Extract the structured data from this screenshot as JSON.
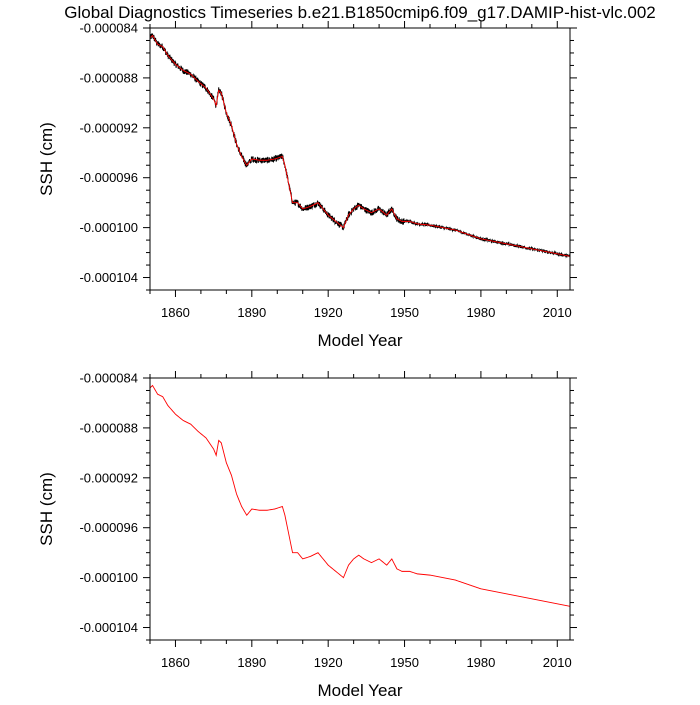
{
  "title": "Global Diagnostics Timeseries b.e21.B1850cmip6.f09_g17.DAMIP-hist-vlc.002",
  "colors": {
    "monthly": "#000000",
    "annual": "#ff0000",
    "axes": "#000000"
  },
  "chart_data": [
    {
      "type": "line",
      "title": "Global Diagnostics Timeseries b.e21.B1850cmip6.f09_g17.DAMIP-hist-vlc.002",
      "xlabel": "Model Year",
      "ylabel": "SSH (cm)",
      "xlim": [
        1850,
        2015
      ],
      "ylim": [
        -0.000105,
        -8.4e-05
      ],
      "xticks": [
        1860,
        1890,
        1920,
        1950,
        1980,
        2010
      ],
      "xtick_labels": [
        "1860",
        "1890",
        "1920",
        "1950",
        "1980",
        "2010"
      ],
      "yticks": [
        -8.4e-05,
        -8.8e-05,
        -9.2e-05,
        -9.6e-05,
        -0.0001,
        -0.000104
      ],
      "ytick_labels": [
        "-0.000084",
        "-0.000088",
        "-0.000092",
        "-0.000096",
        "-0.000100",
        "-0.000104"
      ],
      "grid": false,
      "series": [
        {
          "color": "#000000",
          "style": "noisy-monthly",
          "x": [
            1850,
            1851,
            1853,
            1855,
            1857,
            1860,
            1863,
            1866,
            1869,
            1872,
            1875,
            1876,
            1877,
            1878,
            1880,
            1882,
            1884,
            1886,
            1888,
            1890,
            1893,
            1896,
            1899,
            1902,
            1903,
            1904,
            1905,
            1906,
            1908,
            1910,
            1913,
            1916,
            1920,
            1923,
            1926,
            1928,
            1930,
            1932,
            1934,
            1937,
            1940,
            1943,
            1945,
            1947,
            1949,
            1952,
            1955,
            1960,
            1970,
            1980,
            1985,
            1990,
            1995,
            2000,
            2005,
            2010,
            2015
          ],
          "y": [
            -8.48e-05,
            -8.46e-05,
            -8.53e-05,
            -8.55e-05,
            -8.62e-05,
            -8.69e-05,
            -8.74e-05,
            -8.77e-05,
            -8.83e-05,
            -8.88e-05,
            -8.97e-05,
            -9.02e-05,
            -8.9e-05,
            -8.92e-05,
            -9.08e-05,
            -9.18e-05,
            -9.33e-05,
            -9.43e-05,
            -9.5e-05,
            -9.45e-05,
            -9.46e-05,
            -9.46e-05,
            -9.45e-05,
            -9.43e-05,
            -9.5e-05,
            -9.6e-05,
            -9.7e-05,
            -9.8e-05,
            -9.8e-05,
            -9.85e-05,
            -9.83e-05,
            -9.8e-05,
            -9.9e-05,
            -9.95e-05,
            -0.0001,
            -9.9e-05,
            -9.85e-05,
            -9.82e-05,
            -9.85e-05,
            -9.88e-05,
            -9.85e-05,
            -9.9e-05,
            -9.85e-05,
            -9.93e-05,
            -9.95e-05,
            -9.95e-05,
            -9.97e-05,
            -9.98e-05,
            -0.0001002,
            -0.0001009,
            -0.0001011,
            -0.0001013,
            -0.0001015,
            -0.0001017,
            -0.0001019,
            -0.0001021,
            -0.0001023
          ]
        },
        {
          "color": "#ff0000",
          "style": "annual",
          "x": [
            1850,
            1851,
            1853,
            1855,
            1857,
            1860,
            1863,
            1866,
            1869,
            1872,
            1875,
            1876,
            1877,
            1878,
            1880,
            1882,
            1884,
            1886,
            1888,
            1890,
            1893,
            1896,
            1899,
            1902,
            1903,
            1904,
            1905,
            1906,
            1908,
            1910,
            1913,
            1916,
            1920,
            1923,
            1926,
            1928,
            1930,
            1932,
            1934,
            1937,
            1940,
            1943,
            1945,
            1947,
            1949,
            1952,
            1955,
            1960,
            1970,
            1980,
            1985,
            1990,
            1995,
            2000,
            2005,
            2010,
            2015
          ],
          "y": [
            -8.48e-05,
            -8.46e-05,
            -8.53e-05,
            -8.55e-05,
            -8.62e-05,
            -8.69e-05,
            -8.74e-05,
            -8.77e-05,
            -8.83e-05,
            -8.88e-05,
            -8.97e-05,
            -9.02e-05,
            -8.9e-05,
            -8.92e-05,
            -9.08e-05,
            -9.18e-05,
            -9.33e-05,
            -9.43e-05,
            -9.5e-05,
            -9.45e-05,
            -9.46e-05,
            -9.46e-05,
            -9.45e-05,
            -9.43e-05,
            -9.5e-05,
            -9.6e-05,
            -9.7e-05,
            -9.8e-05,
            -9.8e-05,
            -9.85e-05,
            -9.83e-05,
            -9.8e-05,
            -9.9e-05,
            -9.95e-05,
            -0.0001,
            -9.9e-05,
            -9.85e-05,
            -9.82e-05,
            -9.85e-05,
            -9.88e-05,
            -9.85e-05,
            -9.9e-05,
            -9.85e-05,
            -9.93e-05,
            -9.95e-05,
            -9.95e-05,
            -9.97e-05,
            -9.98e-05,
            -0.0001002,
            -0.0001009,
            -0.0001011,
            -0.0001013,
            -0.0001015,
            -0.0001017,
            -0.0001019,
            -0.0001021,
            -0.0001023
          ]
        }
      ]
    },
    {
      "type": "line",
      "xlabel": "Model Year",
      "ylabel": "SSH (cm)",
      "xlim": [
        1850,
        2015
      ],
      "ylim": [
        -0.000105,
        -8.4e-05
      ],
      "xticks": [
        1860,
        1890,
        1920,
        1950,
        1980,
        2010
      ],
      "xtick_labels": [
        "1860",
        "1890",
        "1920",
        "1950",
        "1980",
        "2010"
      ],
      "yticks": [
        -8.4e-05,
        -8.8e-05,
        -9.2e-05,
        -9.6e-05,
        -0.0001,
        -0.000104
      ],
      "ytick_labels": [
        "-0.000084",
        "-0.000088",
        "-0.000092",
        "-0.000096",
        "-0.000100",
        "-0.000104"
      ],
      "grid": false,
      "series": [
        {
          "color": "#ff0000",
          "style": "annual",
          "x": [
            1850,
            1851,
            1853,
            1855,
            1857,
            1860,
            1863,
            1866,
            1869,
            1872,
            1875,
            1876,
            1877,
            1878,
            1880,
            1882,
            1884,
            1886,
            1888,
            1890,
            1893,
            1896,
            1899,
            1902,
            1903,
            1904,
            1905,
            1906,
            1908,
            1910,
            1913,
            1916,
            1920,
            1923,
            1926,
            1928,
            1930,
            1932,
            1934,
            1937,
            1940,
            1943,
            1945,
            1947,
            1949,
            1952,
            1955,
            1960,
            1970,
            1980,
            1985,
            1990,
            1995,
            2000,
            2005,
            2010,
            2015
          ],
          "y": [
            -8.48e-05,
            -8.46e-05,
            -8.53e-05,
            -8.55e-05,
            -8.62e-05,
            -8.69e-05,
            -8.74e-05,
            -8.77e-05,
            -8.83e-05,
            -8.88e-05,
            -8.97e-05,
            -9.02e-05,
            -8.9e-05,
            -8.92e-05,
            -9.08e-05,
            -9.18e-05,
            -9.33e-05,
            -9.43e-05,
            -9.5e-05,
            -9.45e-05,
            -9.46e-05,
            -9.46e-05,
            -9.45e-05,
            -9.43e-05,
            -9.5e-05,
            -9.6e-05,
            -9.7e-05,
            -9.8e-05,
            -9.8e-05,
            -9.85e-05,
            -9.83e-05,
            -9.8e-05,
            -9.9e-05,
            -9.95e-05,
            -0.0001,
            -9.9e-05,
            -9.85e-05,
            -9.82e-05,
            -9.85e-05,
            -9.88e-05,
            -9.85e-05,
            -9.9e-05,
            -9.85e-05,
            -9.93e-05,
            -9.95e-05,
            -9.95e-05,
            -9.97e-05,
            -9.98e-05,
            -0.0001002,
            -0.0001009,
            -0.0001011,
            -0.0001013,
            -0.0001015,
            -0.0001017,
            -0.0001019,
            -0.0001021,
            -0.0001023
          ]
        }
      ]
    }
  ]
}
